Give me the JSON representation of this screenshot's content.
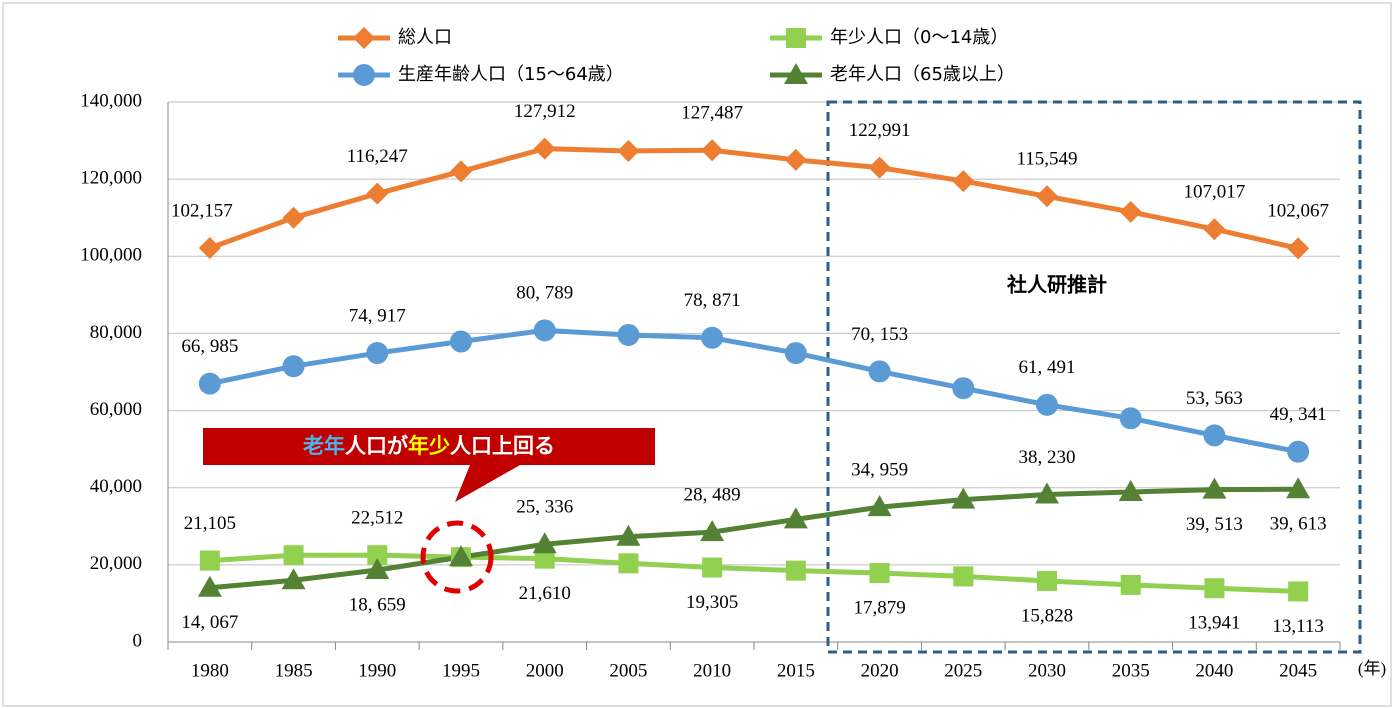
{
  "chart_data": {
    "type": "line",
    "categories": [
      "1980",
      "1985",
      "1990",
      "1995",
      "2000",
      "2005",
      "2010",
      "2015",
      "2020",
      "2025",
      "2030",
      "2035",
      "2040",
      "2045"
    ],
    "x_unit": "(年)",
    "series": [
      {
        "name": "総人口",
        "color": "#ED7D31",
        "marker": "diamond",
        "values": [
          102157,
          110000,
          116247,
          122000,
          127912,
          127300,
          127487,
          125000,
          122991,
          119500,
          115549,
          111500,
          107017,
          102067
        ],
        "value_labels": [
          "102,157",
          null,
          "116,247",
          null,
          "127,912",
          null,
          "127,487",
          null,
          "122,991",
          null,
          "115,549",
          null,
          "107,017",
          "102,067"
        ]
      },
      {
        "name": "年少人口（0〜14歳）",
        "color": "#92D050",
        "marker": "square",
        "values": [
          21105,
          22500,
          22512,
          22000,
          21610,
          20400,
          19305,
          18500,
          17879,
          17000,
          15828,
          14800,
          13941,
          13113
        ],
        "value_labels": [
          "21,105",
          null,
          "22,512",
          null,
          "21,610",
          null,
          "19,305",
          null,
          "17,879",
          null,
          "15,828",
          null,
          "13,941",
          "13,113"
        ]
      },
      {
        "name": "生産年齢人口（15〜64歳）",
        "color": "#5B9BD5",
        "marker": "circle",
        "values": [
          66985,
          71500,
          74917,
          77900,
          80789,
          79600,
          78871,
          74900,
          70153,
          65800,
          61491,
          58000,
          53563,
          49341
        ],
        "value_labels": [
          "66, 985",
          null,
          "74, 917",
          null,
          "80, 789",
          null,
          "78, 871",
          null,
          "70, 153",
          null,
          "61, 491",
          null,
          "53, 563",
          "49, 341"
        ]
      },
      {
        "name": "老年人口（65歳以上）",
        "color": "#548235",
        "marker": "triangle",
        "values": [
          14067,
          16000,
          18659,
          22000,
          25336,
          27300,
          28489,
          31800,
          34959,
          36900,
          38230,
          38900,
          39513,
          39613
        ],
        "value_labels": [
          "14, 067",
          null,
          "18, 659",
          null,
          "25, 336",
          null,
          "28, 489",
          null,
          "34, 959",
          null,
          "38, 230",
          null,
          "39, 513",
          "39, 613"
        ]
      }
    ],
    "ylim": [
      0,
      140000
    ],
    "yticks": [
      {
        "value": 0,
        "label": "0"
      },
      {
        "value": 20000,
        "label": "20,000"
      },
      {
        "value": 40000,
        "label": "40,000"
      },
      {
        "value": 60000,
        "label": "60,000"
      },
      {
        "value": 80000,
        "label": "80,000"
      },
      {
        "value": 100000,
        "label": "100,000"
      },
      {
        "value": 120000,
        "label": "120,000"
      },
      {
        "value": 140000,
        "label": "140,000"
      }
    ],
    "grid": true,
    "projection_label": "社人研推計",
    "callout": [
      "老年",
      "人口が",
      "年少",
      "人口上回る"
    ]
  }
}
